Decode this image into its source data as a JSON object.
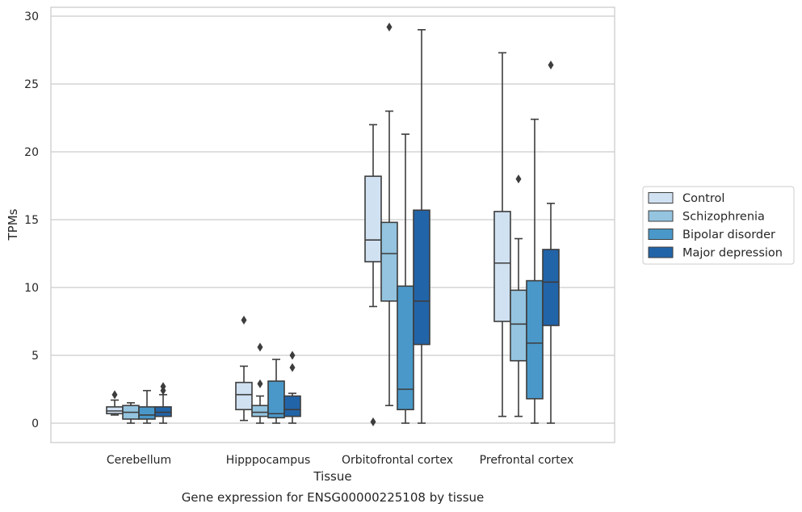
{
  "chart_data": {
    "type": "box",
    "xlabel": "Tissue",
    "ylabel": "TPMs",
    "caption": "Gene expression for ENSG00000225108 by tissue",
    "ylim": [
      -1.4,
      30.6
    ],
    "yticks": [
      0,
      5,
      10,
      15,
      20,
      25,
      30
    ],
    "grid": "horizontal",
    "legend_position": "right",
    "categories": [
      "Cerebellum",
      "Hipppocampus",
      "Orbitofrontal cortex",
      "Prefrontal cortex"
    ],
    "series": [
      {
        "name": "Control",
        "color": "#d0e1f2",
        "boxes": [
          {
            "whisker_low": 0.6,
            "q1": 0.7,
            "median": 0.9,
            "q3": 1.2,
            "whisker_high": 1.7,
            "outliers": [
              2.1
            ]
          },
          {
            "whisker_low": 0.2,
            "q1": 1.0,
            "median": 2.1,
            "q3": 3.0,
            "whisker_high": 4.2,
            "outliers": [
              7.6
            ]
          },
          {
            "whisker_low": 8.6,
            "q1": 11.9,
            "median": 13.5,
            "q3": 18.2,
            "whisker_high": 22.0,
            "outliers": [
              0.1
            ]
          },
          {
            "whisker_low": 0.5,
            "q1": 7.5,
            "median": 11.8,
            "q3": 15.6,
            "whisker_high": 27.3,
            "outliers": []
          }
        ]
      },
      {
        "name": "Schizophrenia",
        "color": "#94c4df",
        "boxes": [
          {
            "whisker_low": 0.0,
            "q1": 0.3,
            "median": 0.8,
            "q3": 1.3,
            "whisker_high": 1.5,
            "outliers": []
          },
          {
            "whisker_low": 0.0,
            "q1": 0.5,
            "median": 0.8,
            "q3": 1.3,
            "whisker_high": 2.0,
            "outliers": [
              5.6,
              2.9
            ]
          },
          {
            "whisker_low": 1.3,
            "q1": 9.0,
            "median": 12.5,
            "q3": 14.8,
            "whisker_high": 23.0,
            "outliers": [
              29.2
            ]
          },
          {
            "whisker_low": 0.5,
            "q1": 4.6,
            "median": 7.3,
            "q3": 9.8,
            "whisker_high": 13.6,
            "outliers": [
              18.0
            ]
          }
        ]
      },
      {
        "name": "Bipolar disorder",
        "color": "#4a98c9",
        "boxes": [
          {
            "whisker_low": 0.0,
            "q1": 0.3,
            "median": 0.6,
            "q3": 1.2,
            "whisker_high": 2.4,
            "outliers": []
          },
          {
            "whisker_low": 0.0,
            "q1": 0.4,
            "median": 0.7,
            "q3": 3.1,
            "whisker_high": 4.7,
            "outliers": []
          },
          {
            "whisker_low": 0.0,
            "q1": 1.0,
            "median": 2.5,
            "q3": 10.1,
            "whisker_high": 21.3,
            "outliers": []
          },
          {
            "whisker_low": 0.0,
            "q1": 1.8,
            "median": 5.9,
            "q3": 10.5,
            "whisker_high": 22.4,
            "outliers": []
          }
        ]
      },
      {
        "name": "Major depression",
        "color": "#2264a8",
        "boxes": [
          {
            "whisker_low": 0.0,
            "q1": 0.5,
            "median": 0.8,
            "q3": 1.2,
            "whisker_high": 2.1,
            "outliers": [
              2.7,
              2.4
            ]
          },
          {
            "whisker_low": 0.0,
            "q1": 0.5,
            "median": 1.0,
            "q3": 2.0,
            "whisker_high": 2.2,
            "outliers": [
              5.0,
              4.1
            ]
          },
          {
            "whisker_low": 0.0,
            "q1": 5.8,
            "median": 9.0,
            "q3": 15.7,
            "whisker_high": 29.0,
            "outliers": []
          },
          {
            "whisker_low": 0.0,
            "q1": 7.2,
            "median": 10.4,
            "q3": 12.8,
            "whisker_high": 16.2,
            "outliers": [
              26.4
            ]
          }
        ]
      }
    ]
  }
}
